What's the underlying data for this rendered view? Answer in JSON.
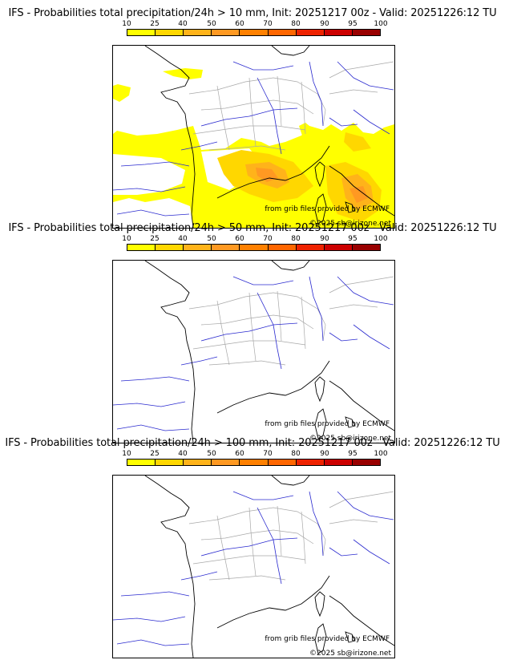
{
  "legend": {
    "labels": [
      "10",
      "25",
      "40",
      "50",
      "60",
      "70",
      "80",
      "90",
      "95",
      "100"
    ],
    "colors": [
      "#ffff00",
      "#ffd700",
      "#ffb31a",
      "#ff9922",
      "#ff8000",
      "#ff6600",
      "#ee2200",
      "#cc0000",
      "#990000",
      "#660000"
    ]
  },
  "panels": [
    {
      "title": "IFS - Probabilities total precipitation/24h > 10 mm, Init: 20251217 00z - Valid: 20251226:12 TU"
    },
    {
      "title": "IFS - Probabilities total precipitation/24h > 50 mm, Init: 20251217 00z - Valid: 20251226:12 TU"
    },
    {
      "title": "IFS - Probabilities total precipitation/24h > 100 mm, Init: 20251217 00z - Valid: 20251226:12 TU"
    }
  ],
  "credits": {
    "source": "from grib files provided by ECMWF",
    "copyright": "©2025 sb@irizone.net"
  },
  "colors": {
    "coast": "#000000",
    "rivers": "#2a2acf",
    "borders": "#a8a8a8"
  }
}
